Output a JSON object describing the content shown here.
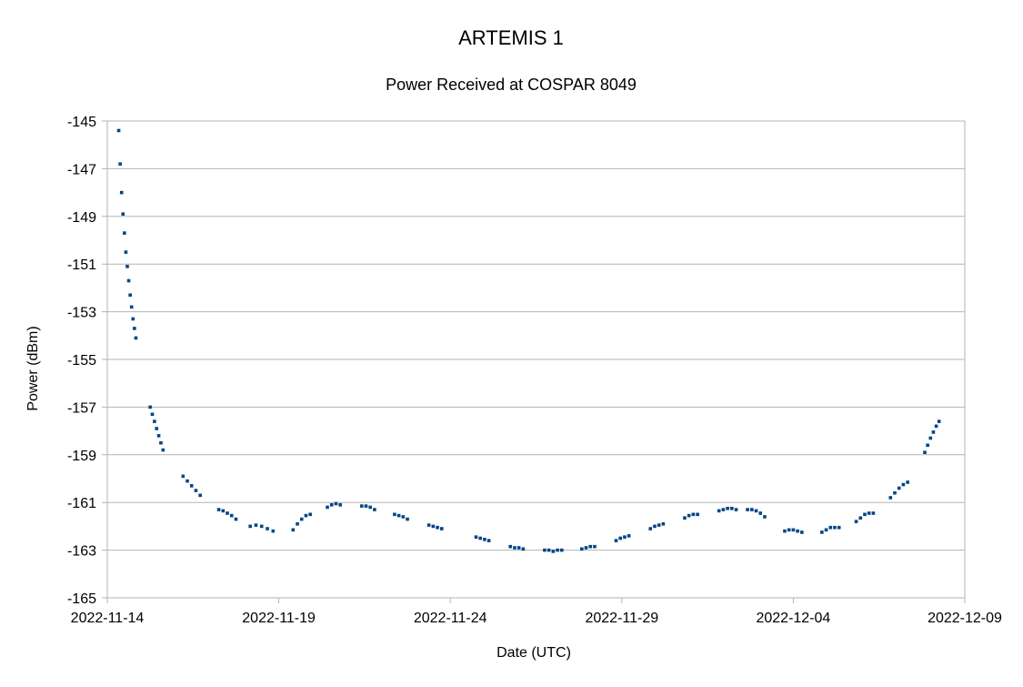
{
  "chart_data": {
    "type": "scatter",
    "title": "ARTEMIS 1",
    "subtitle": "Power Received at COSPAR 8049",
    "xlabel": "Date (UTC)",
    "ylabel": "Power (dBm)",
    "xlim": [
      "2022-11-14",
      "2022-12-09"
    ],
    "ylim": [
      -165,
      -145
    ],
    "x_ticks": [
      "2022-11-14",
      "2022-11-19",
      "2022-11-24",
      "2022-11-29",
      "2022-12-04",
      "2022-12-09"
    ],
    "y_ticks": [
      -145,
      -147,
      -149,
      -151,
      -153,
      -155,
      -157,
      -159,
      -161,
      -163,
      -165
    ],
    "grid": "horizontal",
    "legend": "none",
    "marker_color": "#004586",
    "series": [
      {
        "points": [
          [
            "2022-11-14 08:00",
            -145.4
          ],
          [
            "2022-11-14 09:00",
            -146.8
          ],
          [
            "2022-11-14 10:00",
            -148.0
          ],
          [
            "2022-11-14 11:00",
            -148.9
          ],
          [
            "2022-11-14 12:00",
            -149.7
          ],
          [
            "2022-11-14 13:00",
            -150.5
          ],
          [
            "2022-11-14 14:00",
            -151.1
          ],
          [
            "2022-11-14 15:00",
            -151.7
          ],
          [
            "2022-11-14 16:00",
            -152.3
          ],
          [
            "2022-11-14 17:00",
            -152.8
          ],
          [
            "2022-11-14 18:00",
            -153.3
          ],
          [
            "2022-11-14 19:00",
            -153.7
          ],
          [
            "2022-11-14 20:00",
            -154.1
          ],
          [
            "2022-11-15 06:00",
            -157.0
          ],
          [
            "2022-11-15 07:30",
            -157.3
          ],
          [
            "2022-11-15 09:00",
            -157.6
          ],
          [
            "2022-11-15 10:30",
            -157.9
          ],
          [
            "2022-11-15 12:00",
            -158.2
          ],
          [
            "2022-11-15 13:30",
            -158.5
          ],
          [
            "2022-11-15 15:00",
            -158.8
          ],
          [
            "2022-11-16 05:00",
            -159.9
          ],
          [
            "2022-11-16 08:00",
            -160.1
          ],
          [
            "2022-11-16 11:00",
            -160.3
          ],
          [
            "2022-11-16 14:00",
            -160.5
          ],
          [
            "2022-11-16 17:00",
            -160.7
          ],
          [
            "2022-11-17 06:00",
            -161.3
          ],
          [
            "2022-11-17 09:00",
            -161.35
          ],
          [
            "2022-11-17 12:00",
            -161.45
          ],
          [
            "2022-11-17 15:00",
            -161.55
          ],
          [
            "2022-11-17 18:00",
            -161.7
          ],
          [
            "2022-11-18 04:00",
            -162.0
          ],
          [
            "2022-11-18 08:00",
            -161.95
          ],
          [
            "2022-11-18 12:00",
            -162.0
          ],
          [
            "2022-11-18 16:00",
            -162.1
          ],
          [
            "2022-11-18 20:00",
            -162.2
          ],
          [
            "2022-11-19 10:00",
            -162.15
          ],
          [
            "2022-11-19 13:00",
            -161.9
          ],
          [
            "2022-11-19 16:00",
            -161.7
          ],
          [
            "2022-11-19 19:00",
            -161.55
          ],
          [
            "2022-11-19 22:00",
            -161.5
          ],
          [
            "2022-11-20 10:00",
            -161.2
          ],
          [
            "2022-11-20 13:00",
            -161.1
          ],
          [
            "2022-11-20 16:00",
            -161.05
          ],
          [
            "2022-11-20 19:00",
            -161.1
          ],
          [
            "2022-11-21 10:00",
            -161.15
          ],
          [
            "2022-11-21 13:00",
            -161.15
          ],
          [
            "2022-11-21 16:00",
            -161.2
          ],
          [
            "2022-11-21 19:00",
            -161.3
          ],
          [
            "2022-11-22 09:00",
            -161.5
          ],
          [
            "2022-11-22 12:00",
            -161.55
          ],
          [
            "2022-11-22 15:00",
            -161.6
          ],
          [
            "2022-11-22 18:00",
            -161.7
          ],
          [
            "2022-11-23 09:00",
            -161.95
          ],
          [
            "2022-11-23 12:00",
            -162.0
          ],
          [
            "2022-11-23 15:00",
            -162.05
          ],
          [
            "2022-11-23 18:00",
            -162.1
          ],
          [
            "2022-11-24 18:00",
            -162.45
          ],
          [
            "2022-11-24 21:00",
            -162.5
          ],
          [
            "2022-11-25 00:00",
            -162.55
          ],
          [
            "2022-11-25 03:00",
            -162.6
          ],
          [
            "2022-11-25 18:00",
            -162.85
          ],
          [
            "2022-11-25 21:00",
            -162.9
          ],
          [
            "2022-11-26 00:00",
            -162.9
          ],
          [
            "2022-11-26 03:00",
            -162.95
          ],
          [
            "2022-11-26 18:00",
            -163.0
          ],
          [
            "2022-11-26 21:00",
            -163.0
          ],
          [
            "2022-11-27 00:00",
            -163.05
          ],
          [
            "2022-11-27 03:00",
            -163.0
          ],
          [
            "2022-11-27 06:00",
            -163.0
          ],
          [
            "2022-11-27 20:00",
            -162.95
          ],
          [
            "2022-11-27 23:00",
            -162.9
          ],
          [
            "2022-11-28 02:00",
            -162.85
          ],
          [
            "2022-11-28 05:00",
            -162.85
          ],
          [
            "2022-11-28 20:00",
            -162.6
          ],
          [
            "2022-11-28 23:00",
            -162.5
          ],
          [
            "2022-11-29 02:00",
            -162.45
          ],
          [
            "2022-11-29 05:00",
            -162.4
          ],
          [
            "2022-11-29 20:00",
            -162.1
          ],
          [
            "2022-11-29 23:00",
            -162.0
          ],
          [
            "2022-11-30 02:00",
            -161.95
          ],
          [
            "2022-11-30 05:00",
            -161.9
          ],
          [
            "2022-11-30 20:00",
            -161.65
          ],
          [
            "2022-11-30 23:00",
            -161.55
          ],
          [
            "2022-12-01 02:00",
            -161.5
          ],
          [
            "2022-12-01 05:00",
            -161.5
          ],
          [
            "2022-12-01 20:00",
            -161.35
          ],
          [
            "2022-12-01 23:00",
            -161.3
          ],
          [
            "2022-12-02 02:00",
            -161.25
          ],
          [
            "2022-12-02 05:00",
            -161.25
          ],
          [
            "2022-12-02 08:00",
            -161.3
          ],
          [
            "2022-12-02 16:00",
            -161.3
          ],
          [
            "2022-12-02 19:00",
            -161.3
          ],
          [
            "2022-12-02 22:00",
            -161.35
          ],
          [
            "2022-12-03 01:00",
            -161.45
          ],
          [
            "2022-12-03 04:00",
            -161.6
          ],
          [
            "2022-12-03 18:00",
            -162.2
          ],
          [
            "2022-12-03 21:00",
            -162.15
          ],
          [
            "2022-12-04 00:00",
            -162.15
          ],
          [
            "2022-12-04 03:00",
            -162.2
          ],
          [
            "2022-12-04 06:00",
            -162.25
          ],
          [
            "2022-12-04 20:00",
            -162.25
          ],
          [
            "2022-12-04 23:00",
            -162.15
          ],
          [
            "2022-12-05 02:00",
            -162.05
          ],
          [
            "2022-12-05 05:00",
            -162.05
          ],
          [
            "2022-12-05 08:00",
            -162.05
          ],
          [
            "2022-12-05 20:00",
            -161.8
          ],
          [
            "2022-12-05 23:00",
            -161.65
          ],
          [
            "2022-12-06 02:00",
            -161.5
          ],
          [
            "2022-12-06 05:00",
            -161.45
          ],
          [
            "2022-12-06 08:00",
            -161.45
          ],
          [
            "2022-12-06 20:00",
            -160.8
          ],
          [
            "2022-12-06 23:00",
            -160.6
          ],
          [
            "2022-12-07 02:00",
            -160.4
          ],
          [
            "2022-12-07 05:00",
            -160.25
          ],
          [
            "2022-12-07 08:00",
            -160.15
          ],
          [
            "2022-12-07 20:00",
            -158.9
          ],
          [
            "2022-12-07 22:00",
            -158.6
          ],
          [
            "2022-12-08 00:00",
            -158.3
          ],
          [
            "2022-12-08 02:00",
            -158.05
          ],
          [
            "2022-12-08 04:00",
            -157.8
          ],
          [
            "2022-12-08 06:00",
            -157.6
          ]
        ]
      }
    ]
  }
}
